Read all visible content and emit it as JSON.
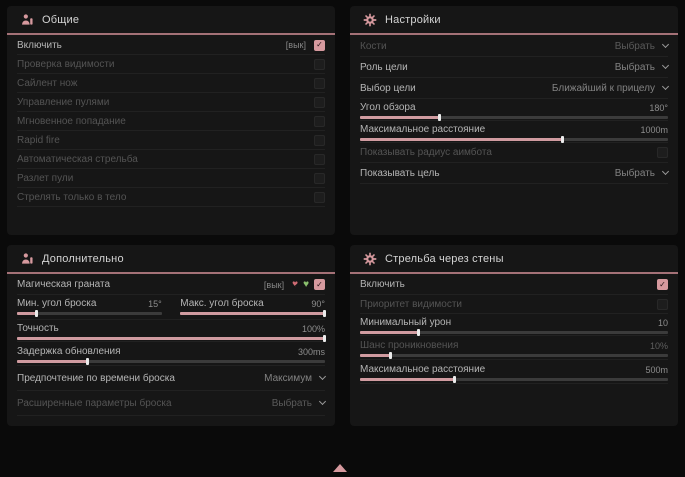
{
  "colors": {
    "accent": "#d6999e",
    "header_line": "#a47177",
    "slider_fill": "#d09ba0",
    "heart_off": "#cf6b73",
    "heart_on": "#8ac06d",
    "panel_bg": "#161616"
  },
  "footer": {
    "scroll_indicator_icon": "up-triangle-icon"
  },
  "panels": [
    {
      "title": "Общие",
      "icon": "person-icon",
      "rows": [
        {
          "label": "Включить",
          "hotkey": "[вык]",
          "checked": true
        },
        {
          "label": "Проверка видимости",
          "checked": false
        },
        {
          "label": "Сайлент нож",
          "checked": false
        },
        {
          "label": "Управление пулями",
          "checked": false
        },
        {
          "label": "Мгновенное попадание",
          "checked": false
        },
        {
          "label": "Rapid fire",
          "checked": false
        },
        {
          "label": "Автоматическая стрельба",
          "checked": false
        },
        {
          "label": "Разлет пули",
          "checked": false
        },
        {
          "label": "Стрелять только в тело",
          "checked": false
        }
      ]
    },
    {
      "title": "Настройки",
      "icon": "gear-icon",
      "rows": [
        {
          "label": "Кости",
          "value": "Выбрать"
        },
        {
          "label": "Роль цели",
          "value": "Выбрать"
        },
        {
          "label": "Выбор цели",
          "value": "Ближайший к прицелу"
        },
        {
          "label": "Угол обзора",
          "value": "180°",
          "fill": 26
        },
        {
          "label": "Максимальное расстояние",
          "value": "1000m",
          "fill": 66
        },
        {
          "label": "Показывать радиус аимбота",
          "checked": false
        },
        {
          "label": "Показывать цель",
          "value": "Выбрать"
        }
      ]
    },
    {
      "title": "Дополнительно",
      "icon": "person-icon",
      "rows": [
        {
          "label": "Магическая граната",
          "hotkey": "[вык]",
          "checked": true
        },
        {
          "label": "Мин. угол броска",
          "value": "15°",
          "fill": 14
        },
        {
          "label": "Макс. угол броска",
          "value": "90°",
          "fill": 100
        },
        {
          "label": "Точность",
          "value": "100%",
          "fill": 100
        },
        {
          "label": "Задержка обновления",
          "value": "300ms",
          "fill": 23
        },
        {
          "label": "Предпочтение по времени броска",
          "value": "Максимум"
        },
        {
          "label": "Расширенные параметры броска",
          "value": "Выбрать"
        }
      ]
    },
    {
      "title": "Стрельба через стены",
      "icon": "gear-icon",
      "rows": [
        {
          "label": "Включить",
          "checked": true
        },
        {
          "label": "Приоритет видимости",
          "checked": false
        },
        {
          "label": "Минимальный урон",
          "value": "10",
          "fill": 19
        },
        {
          "label": "Шанс проникновения",
          "value": "10%",
          "fill": 10
        },
        {
          "label": "Максимальное расстояние",
          "value": "500m",
          "fill": 31
        }
      ]
    }
  ]
}
